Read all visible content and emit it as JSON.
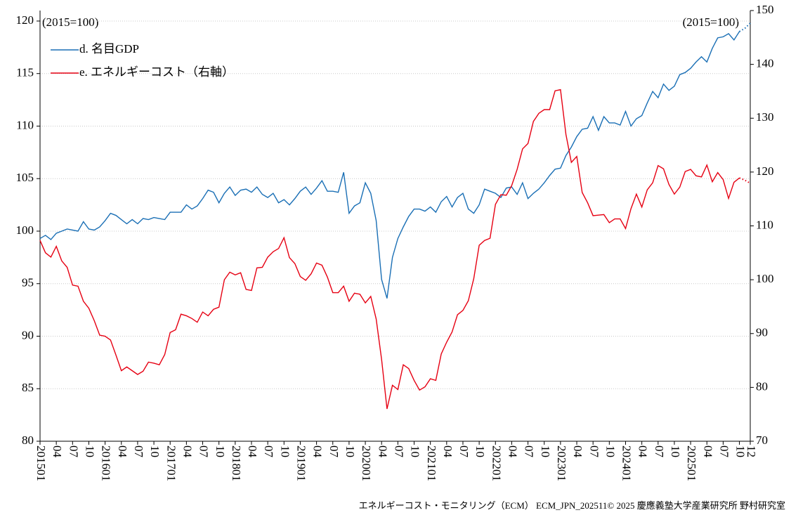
{
  "chart_data": {
    "type": "line",
    "annotations": [
      "(2015=100)",
      "(2015=100)"
    ],
    "footer": "エネルギーコスト・モニタリング（ECM） ECM_JPN_202511© 2025 慶應義塾大学産業研究所 野村研究室",
    "categories": [
      "201501",
      null,
      null,
      "04",
      null,
      null,
      "07",
      null,
      null,
      "10",
      null,
      null,
      "201601",
      null,
      null,
      "04",
      null,
      null,
      "07",
      null,
      null,
      "10",
      null,
      null,
      "201701",
      null,
      null,
      "04",
      null,
      null,
      "07",
      null,
      null,
      "10",
      null,
      null,
      "201801",
      null,
      null,
      "04",
      null,
      null,
      "07",
      null,
      null,
      "10",
      null,
      null,
      "201901",
      null,
      null,
      "04",
      null,
      null,
      "07",
      null,
      null,
      "10",
      null,
      null,
      "202001",
      null,
      null,
      "04",
      null,
      null,
      "07",
      null,
      null,
      "10",
      null,
      null,
      "202101",
      null,
      null,
      "04",
      null,
      null,
      "07",
      null,
      null,
      "10",
      null,
      null,
      "202201",
      null,
      null,
      "04",
      null,
      null,
      "07",
      null,
      null,
      "10",
      null,
      null,
      "202301",
      null,
      null,
      "04",
      null,
      null,
      "07",
      null,
      null,
      "10",
      null,
      null,
      "202401",
      null,
      null,
      "04",
      null,
      null,
      "07",
      null,
      null,
      "10",
      null,
      null,
      "202501",
      null,
      null,
      "04",
      null,
      null,
      "07",
      null,
      null,
      "10",
      null,
      "12"
    ],
    "ylim": [
      80,
      121
    ],
    "yticks": [
      80,
      85,
      90,
      95,
      100,
      105,
      110,
      115,
      120
    ],
    "y2lim": [
      70,
      150
    ],
    "y2ticks": [
      70,
      80,
      90,
      100,
      110,
      120,
      130,
      140,
      150
    ],
    "grid": true,
    "legend": "upper left",
    "dotted_from": 129,
    "series": [
      {
        "name": "d. 名目GDP",
        "color": "#1a6fb5",
        "values": [
          99.3,
          99.6,
          99.2,
          99.8,
          100.0,
          100.2,
          100.1,
          100.0,
          100.9,
          100.2,
          100.1,
          100.4,
          101.0,
          101.7,
          101.5,
          101.1,
          100.7,
          101.1,
          100.7,
          101.2,
          101.1,
          101.3,
          101.2,
          101.1,
          101.8,
          101.8,
          101.8,
          102.5,
          102.1,
          102.4,
          103.1,
          103.9,
          103.7,
          102.7,
          103.6,
          104.2,
          103.4,
          103.9,
          104.0,
          103.7,
          104.2,
          103.5,
          103.2,
          103.6,
          102.7,
          103.0,
          102.5,
          103.1,
          103.8,
          104.2,
          103.5,
          104.1,
          104.8,
          103.8,
          103.8,
          103.7,
          105.6,
          101.7,
          102.4,
          102.7,
          104.6,
          103.6,
          101.0,
          95.4,
          93.6,
          97.5,
          99.3,
          100.4,
          101.4,
          102.1,
          102.1,
          101.9,
          102.3,
          101.8,
          102.8,
          103.3,
          102.3,
          103.2,
          103.6,
          102.1,
          101.7,
          102.5,
          104.0,
          103.8,
          103.6,
          103.2,
          104.1,
          104.2,
          103.5,
          104.6,
          103.1,
          103.6,
          104.0,
          104.6,
          105.3,
          105.9,
          106.0,
          107.2,
          108.0,
          109.0,
          109.7,
          109.8,
          110.9,
          109.6,
          110.9,
          110.3,
          110.3,
          110.1,
          111.4,
          110.0,
          110.7,
          111.0,
          112.2,
          113.3,
          112.7,
          114.0,
          113.4,
          113.8,
          114.9,
          115.1,
          115.5,
          116.1,
          116.6,
          116.1,
          117.4,
          118.4,
          118.5,
          118.8,
          118.2,
          119.0,
          119.3,
          119.8
        ]
      },
      {
        "name": "e. エネルギーコスト（右軸）",
        "color": "#e60012",
        "axis": "y2",
        "values": [
          107.3,
          105.0,
          104.2,
          106.2,
          103.5,
          102.3,
          99.0,
          98.8,
          96.0,
          94.7,
          92.4,
          89.7,
          89.5,
          88.8,
          86.0,
          83.1,
          83.8,
          83.1,
          82.4,
          83.0,
          84.7,
          84.5,
          84.2,
          86.1,
          90.2,
          90.7,
          93.6,
          93.3,
          92.8,
          92.1,
          94.0,
          93.3,
          94.5,
          94.9,
          100.0,
          101.4,
          100.9,
          101.3,
          98.2,
          98.0,
          102.2,
          102.3,
          104.2,
          105.2,
          105.8,
          107.8,
          104.1,
          103.0,
          100.6,
          99.9,
          101.1,
          103.1,
          102.7,
          100.5,
          97.6,
          97.6,
          98.8,
          96.0,
          97.5,
          97.3,
          95.7,
          96.9,
          92.7,
          85.2,
          76.0,
          80.4,
          79.6,
          84.2,
          83.5,
          81.3,
          79.5,
          80.1,
          81.6,
          81.3,
          86.2,
          88.4,
          90.3,
          93.5,
          94.3,
          96.1,
          100.2,
          106.4,
          107.3,
          107.7,
          114.0,
          115.8,
          115.7,
          117.5,
          120.5,
          124.3,
          125.3,
          129.4,
          130.9,
          131.6,
          131.6,
          135.1,
          135.3,
          127.0,
          121.8,
          122.9,
          116.2,
          114.3,
          111.9,
          112.0,
          112.1,
          110.6,
          111.3,
          111.3,
          109.5,
          113.2,
          115.9,
          113.5,
          116.7,
          118.0,
          121.2,
          120.6,
          117.7,
          115.9,
          117.2,
          120.1,
          120.5,
          119.3,
          119.1,
          121.3,
          118.2,
          119.9,
          118.6,
          115.1,
          118.1,
          118.9,
          118.5,
          117.9
        ]
      }
    ]
  }
}
